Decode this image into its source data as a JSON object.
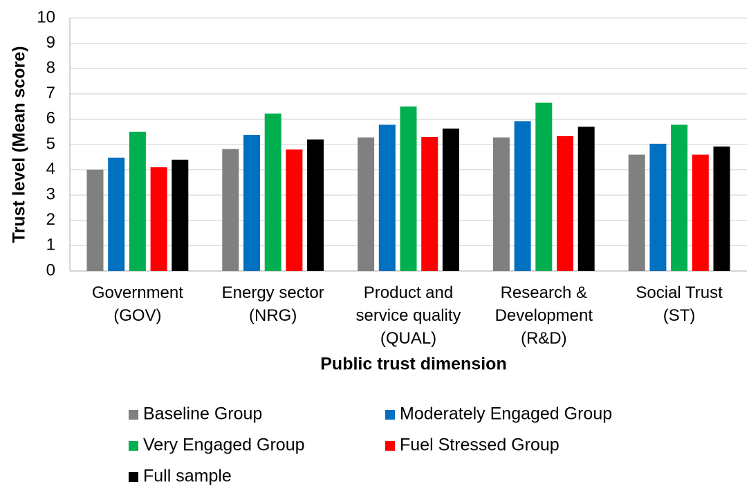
{
  "chart_data": {
    "type": "bar",
    "x_label": "Public trust dimension",
    "y_label": "Trust level (Mean score)",
    "categories": [
      "Government (GOV)",
      "Energy sector (NRG)",
      "Product and service quality (QUAL)",
      "Research & Development (R&D)",
      "Social Trust (ST)"
    ],
    "series": [
      {
        "name": "Baseline Group",
        "color": "#808080",
        "values": [
          4.0,
          4.82,
          5.28,
          5.28,
          4.6
        ]
      },
      {
        "name": "Moderately Engaged Group",
        "color": "#0070c0",
        "values": [
          4.48,
          5.38,
          5.78,
          5.92,
          5.03
        ]
      },
      {
        "name": "Very Engaged Group",
        "color": "#00b050",
        "values": [
          5.5,
          6.22,
          6.5,
          6.65,
          5.78
        ]
      },
      {
        "name": "Fuel Stressed Group",
        "color": "#ff0000",
        "values": [
          4.1,
          4.8,
          5.3,
          5.33,
          4.6
        ]
      },
      {
        "name": "Full sample",
        "color": "#000000",
        "values": [
          4.4,
          5.2,
          5.63,
          5.7,
          4.92
        ]
      }
    ],
    "ylim": [
      0,
      10
    ],
    "yticks": [
      0,
      1,
      2,
      3,
      4,
      5,
      6,
      7,
      8,
      9,
      10
    ],
    "grid": true,
    "legend": "bottom"
  }
}
